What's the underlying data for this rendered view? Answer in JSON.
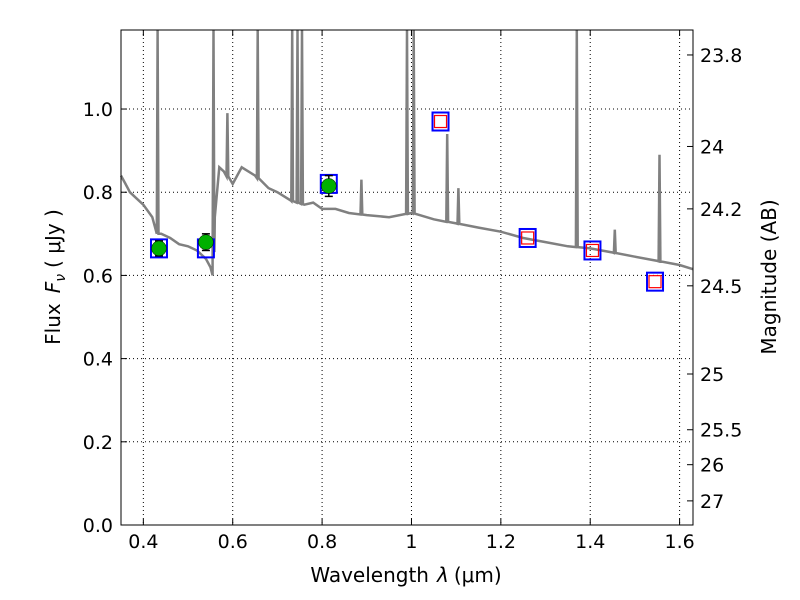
{
  "chart_data": {
    "type": "scatter",
    "xlabel_text": "Wavelength",
    "xlabel_unit": "(μm)",
    "ylabel_text": "Flux",
    "ylabel_unit": "( μJy )",
    "y2label": "Magnitude (AB)",
    "xlim": [
      0.35,
      1.63
    ],
    "ylim": [
      0.0,
      1.19
    ],
    "x_ticks": [
      0.4,
      0.6,
      0.8,
      1.0,
      1.2,
      1.4,
      1.6
    ],
    "x_tick_labels": [
      "0.4",
      "0.6",
      "0.8",
      "1",
      "1.2",
      "1.4",
      "1.6"
    ],
    "y_ticks": [
      0.0,
      0.2,
      0.4,
      0.6,
      0.8,
      1.0
    ],
    "y_tick_labels": [
      "0.0",
      "0.2",
      "0.4",
      "0.6",
      "0.8",
      "1.0"
    ],
    "y2_ticks": [
      {
        "label": "23.8",
        "flux": 1.13
      },
      {
        "label": "24",
        "flux": 0.91
      },
      {
        "label": "24.2",
        "flux": 0.76
      },
      {
        "label": "24.5",
        "flux": 0.575
      },
      {
        "label": "25",
        "flux": 0.363
      },
      {
        "label": "25.5",
        "flux": 0.229
      },
      {
        "label": "26",
        "flux": 0.145
      },
      {
        "label": "27",
        "flux": 0.058
      }
    ],
    "grid": true,
    "model_color": "#808080",
    "model_spectrum": {
      "x": [
        0.35,
        0.36,
        0.37,
        0.38,
        0.4,
        0.42,
        0.43,
        0.44,
        0.46,
        0.48,
        0.5,
        0.52,
        0.54,
        0.55,
        0.555,
        0.56,
        0.57,
        0.58,
        0.6,
        0.62,
        0.65,
        0.68,
        0.7,
        0.73,
        0.76,
        0.78,
        0.8,
        0.83,
        0.86,
        0.9,
        0.95,
        1.0,
        1.05,
        1.1,
        1.15,
        1.2,
        1.25,
        1.3,
        1.35,
        1.4,
        1.45,
        1.5,
        1.55,
        1.6,
        1.63
      ],
      "y": [
        0.84,
        0.82,
        0.8,
        0.79,
        0.77,
        0.74,
        0.7,
        0.7,
        0.69,
        0.675,
        0.67,
        0.66,
        0.64,
        0.62,
        0.6,
        0.74,
        0.86,
        0.85,
        0.82,
        0.86,
        0.84,
        0.81,
        0.8,
        0.78,
        0.77,
        0.775,
        0.76,
        0.76,
        0.75,
        0.745,
        0.74,
        0.75,
        0.735,
        0.725,
        0.715,
        0.705,
        0.69,
        0.68,
        0.67,
        0.665,
        0.655,
        0.645,
        0.635,
        0.625,
        0.615
      ]
    },
    "emission_lines": [
      {
        "x": 0.432,
        "peak": 1.19
      },
      {
        "x": 0.557,
        "peak": 1.19
      },
      {
        "x": 0.588,
        "peak": 0.99
      },
      {
        "x": 0.656,
        "peak": 1.19
      },
      {
        "x": 0.733,
        "peak": 1.19
      },
      {
        "x": 0.745,
        "peak": 1.19
      },
      {
        "x": 0.755,
        "peak": 1.19
      },
      {
        "x": 0.888,
        "peak": 0.83
      },
      {
        "x": 0.99,
        "peak": 1.19
      },
      {
        "x": 1.005,
        "peak": 1.19
      },
      {
        "x": 1.08,
        "peak": 0.94
      },
      {
        "x": 1.105,
        "peak": 0.81
      },
      {
        "x": 1.37,
        "peak": 1.19
      },
      {
        "x": 1.455,
        "peak": 0.71
      },
      {
        "x": 1.555,
        "peak": 0.89
      }
    ],
    "observed": [
      {
        "x": 0.435,
        "y": 0.665,
        "err": 0.018
      },
      {
        "x": 0.54,
        "y": 0.68,
        "err": 0.02
      },
      {
        "x": 0.815,
        "y": 0.815,
        "err": 0.025
      }
    ],
    "observed_color": "#00b000",
    "upper": [
      {
        "x": 1.065,
        "y": 0.97
      },
      {
        "x": 1.26,
        "y": 0.69
      },
      {
        "x": 1.405,
        "y": 0.66
      },
      {
        "x": 1.545,
        "y": 0.585
      }
    ],
    "upper_color": "#ff0000",
    "model_box_color": "#0000ff",
    "model_boxes": [
      {
        "x": 0.435,
        "y": 0.665
      },
      {
        "x": 0.54,
        "y": 0.665
      },
      {
        "x": 0.815,
        "y": 0.82
      },
      {
        "x": 1.065,
        "y": 0.97
      },
      {
        "x": 1.26,
        "y": 0.69
      },
      {
        "x": 1.405,
        "y": 0.66
      },
      {
        "x": 1.545,
        "y": 0.585
      }
    ]
  }
}
